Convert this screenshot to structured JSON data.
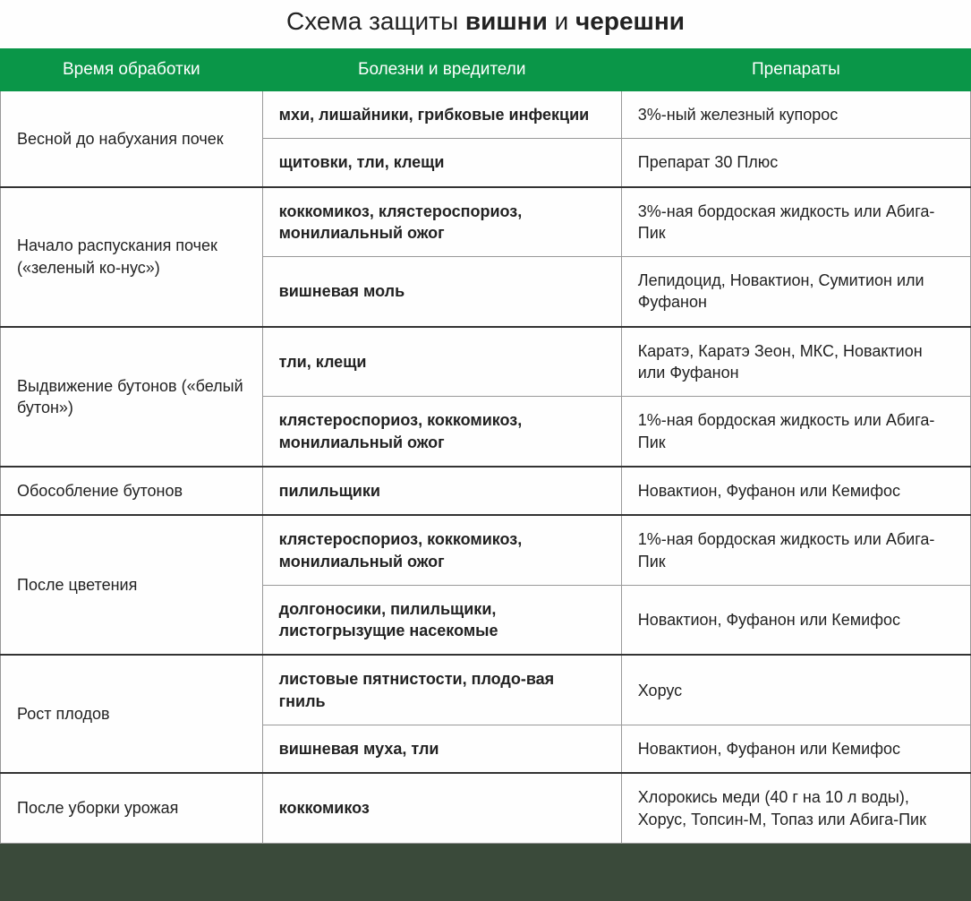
{
  "title_prefix": "Схема защиты ",
  "title_bold1": "вишни",
  "title_mid": " и ",
  "title_bold2": "черешни",
  "headers": {
    "col1": "Время обработки",
    "col2": "Болезни и вредители",
    "col3": "Препараты"
  },
  "colors": {
    "header_bg": "#0a9648",
    "header_text": "#ffffff",
    "border": "#999999",
    "thick_border": "#333333",
    "text": "#222222"
  },
  "groups": [
    {
      "timing": "Весной до набухания почек",
      "rows": [
        {
          "disease": "мхи, лишайники, грибковые инфекции",
          "prep": "3%-ный железный купорос"
        },
        {
          "disease": "щитовки, тли, клещи",
          "prep": "Препарат 30 Плюс"
        }
      ]
    },
    {
      "timing": "Начало распускания почек («зеленый ко-нус»)",
      "rows": [
        {
          "disease": "коккомикоз, клястероспориоз, монилиальный ожог",
          "prep": "3%-ная бордоская жидкость или Абига-Пик"
        },
        {
          "disease": "вишневая моль",
          "prep": "Лепидоцид, Новактион, Сумитион или Фуфанон"
        }
      ]
    },
    {
      "timing": "Выдвижение бутонов («белый бутон»)",
      "rows": [
        {
          "disease": "тли, клещи",
          "prep": "Каратэ, Каратэ Зеон, МКС, Новактион или Фуфанон"
        },
        {
          "disease": "клястероспориоз, коккомикоз, монилиальный ожог",
          "prep": "1%-ная бордоская жидкость или Абига-Пик"
        }
      ]
    },
    {
      "timing": "Обособление бутонов",
      "rows": [
        {
          "disease": "пилильщики",
          "prep": "Новактион, Фуфанон или Кемифос"
        }
      ]
    },
    {
      "timing": "После цветения",
      "rows": [
        {
          "disease": "клястероспориоз, коккомикоз, монилиальный ожог",
          "prep": "1%-ная бордоская жидкость или Абига-Пик"
        },
        {
          "disease": "долгоносики, пилильщики, листогрызущие насекомые",
          "prep": "Новактион, Фуфанон или Кемифос"
        }
      ]
    },
    {
      "timing": "Рост плодов",
      "rows": [
        {
          "disease": "листовые пятнистости, плодо-вая гниль",
          "prep": "Хорус"
        },
        {
          "disease": "вишневая муха, тли",
          "prep": "Новактион, Фуфанон или Кемифос"
        }
      ]
    },
    {
      "timing": "После уборки урожая",
      "rows": [
        {
          "disease": "коккомикоз",
          "prep": "Хлорокись меди (40 г на 10 л воды), Хорус, Топсин-М, Топаз или Абига-Пик"
        }
      ]
    }
  ]
}
